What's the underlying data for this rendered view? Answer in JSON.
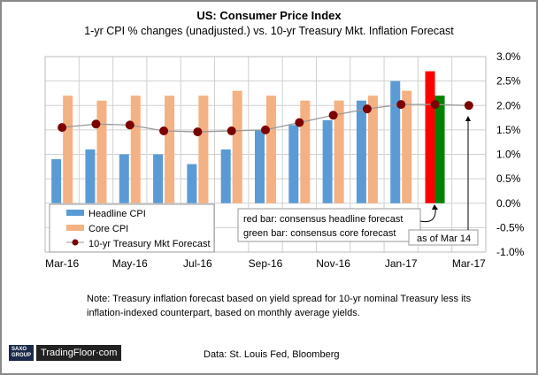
{
  "chart_data": {
    "type": "bar",
    "title": "US: Consumer Price Index",
    "subtitle": "1-yr CPI % changes (unadjusted.) vs. 10-yr Treasury Mkt. Inflation Forecast",
    "categories": [
      "Mar-16",
      "Apr-16",
      "May-16",
      "Jun-16",
      "Jul-16",
      "Aug-16",
      "Sep-16",
      "Oct-16",
      "Nov-16",
      "Dec-16",
      "Jan-17",
      "Feb-17",
      "Mar-17"
    ],
    "x_tick_labels": [
      "Mar-16",
      "May-16",
      "Jul-16",
      "Sep-16",
      "Nov-16",
      "Jan-17",
      "Mar-17"
    ],
    "y_tick_labels": [
      "3.0%",
      "2.5%",
      "2.0%",
      "1.5%",
      "1.0%",
      "0.5%",
      "0.0%",
      "-0.5%",
      "-1.0%"
    ],
    "ylim": [
      -1.0,
      3.0
    ],
    "y_axis_side": "right",
    "grid": true,
    "legend_placement": "bottom-left",
    "series": [
      {
        "name": "Headline CPI",
        "type": "bar",
        "color": "#5b9bd5",
        "values": [
          0.9,
          1.1,
          1.0,
          1.0,
          0.8,
          1.1,
          1.5,
          1.6,
          1.7,
          2.1,
          2.5,
          null,
          null
        ]
      },
      {
        "name": "Core CPI",
        "type": "bar",
        "color": "#f4b183",
        "values": [
          2.2,
          2.1,
          2.2,
          2.2,
          2.2,
          2.3,
          2.2,
          2.1,
          2.1,
          2.2,
          2.3,
          null,
          null
        ]
      },
      {
        "name": "10-yr Treasury Mkt Forecast",
        "type": "line",
        "color": "#7b0000",
        "values": [
          1.55,
          1.62,
          1.6,
          1.48,
          1.46,
          1.48,
          1.5,
          1.65,
          1.8,
          1.93,
          2.02,
          2.02,
          2.0
        ]
      }
    ],
    "forecast_bars": [
      {
        "category": "Feb-17",
        "value": 2.7,
        "color": "#ff0000"
      },
      {
        "category": "Feb-17",
        "value": 2.2,
        "color": "#008000"
      }
    ],
    "annotations": [
      "red bar: consensus headline forecast",
      "green bar: consensus core forecast",
      "as of Mar 14"
    ]
  },
  "note": "Note: Treasury inflation forecast based on yield spread for 10-yr nominal Treasury less its inflation-indexed counterpart, based on monthly average yields.",
  "source": "Data: St. Louis Fed, Bloomberg",
  "logo": {
    "brand": "SAXO GROUP",
    "name": "TradingFloor·com"
  }
}
